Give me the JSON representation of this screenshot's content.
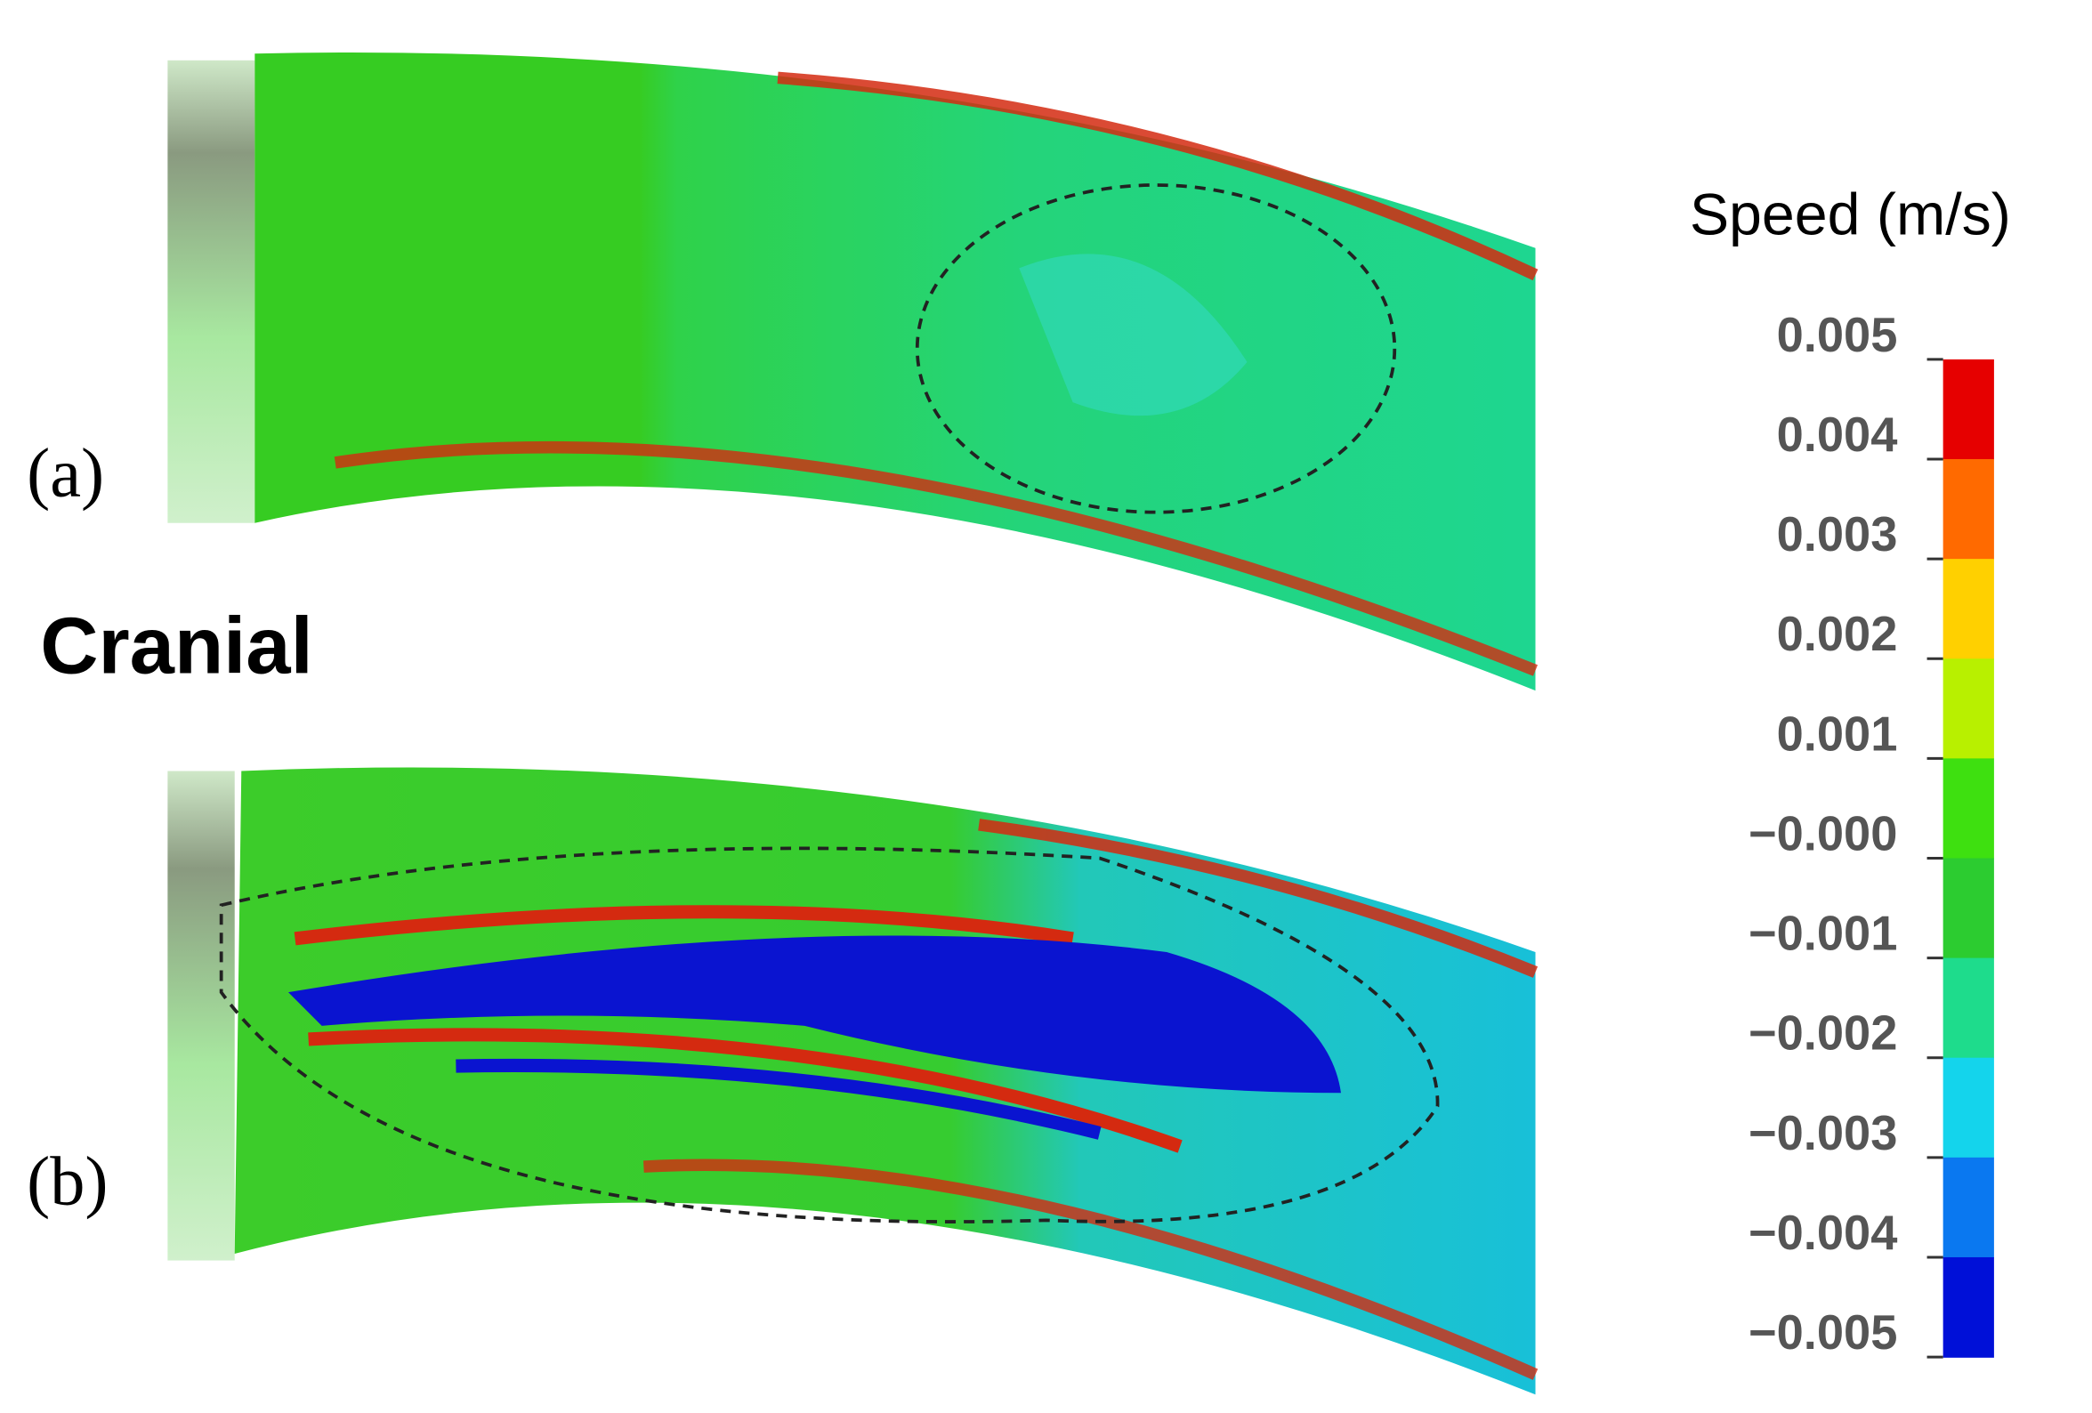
{
  "panels": [
    {
      "label": "(a)"
    },
    {
      "label": "(b)"
    }
  ],
  "side_label": "Cranial",
  "colorbar": {
    "title": "Speed (m/s)",
    "tick_labels": [
      "0.005",
      "0.004",
      "0.003",
      "0.002",
      "0.001",
      "−0.000",
      "−0.001",
      "−0.002",
      "−0.003",
      "−0.004",
      "−0.005"
    ],
    "colors": [
      "#e60000",
      "#ff6a00",
      "#ffd000",
      "#b8f000",
      "#3ee010",
      "#2ccc30",
      "#1edc8c",
      "#14d4ec",
      "#0a78f0",
      "#0010d8"
    ]
  }
}
